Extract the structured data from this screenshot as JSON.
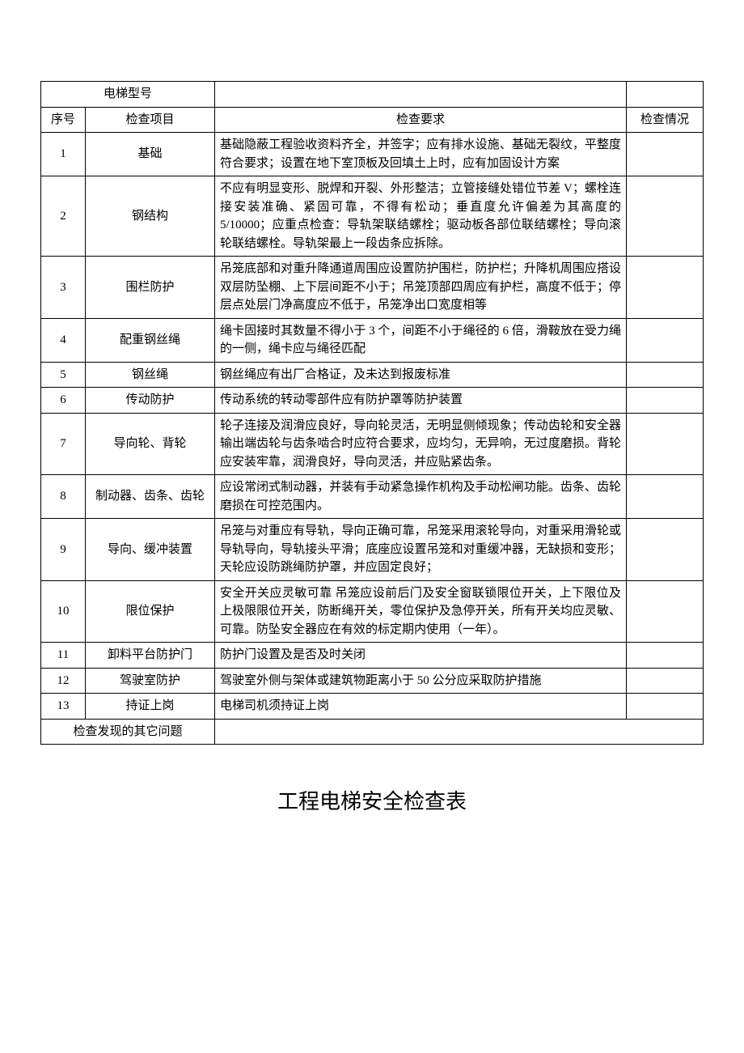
{
  "model_row": {
    "label": "电梯型号",
    "value": ""
  },
  "headers": {
    "seq": "序号",
    "item": "检查项目",
    "req": "检查要求",
    "status": "检查情况"
  },
  "rows": [
    {
      "seq": "1",
      "item": "基础",
      "req": "基础隐蔽工程验收资料齐全，并签字；应有排水设施、基础无裂纹，平整度符合要求；设置在地下室顶板及回填土上时，应有加固设计方案",
      "status": ""
    },
    {
      "seq": "2",
      "item": "钢结构",
      "req": "不应有明显变形、脱焊和开裂、外形整洁；立管接缝处错位节差 V；螺栓连接安装准确、紧固可靠，不得有松动；垂直度允许偏差为其高度的 5/10000；应重点检查：导轨架联结螺栓；驱动板各部位联结螺栓；导向滚轮联结螺栓。导轨架最上一段齿条应拆除。",
      "status": ""
    },
    {
      "seq": "3",
      "item": "围栏防护",
      "req": "吊笼底部和对重升降通道周围应设置防护围栏，防护栏；升降机周围应搭设双层防坠棚、上下层间距不小于；吊笼顶部四周应有护栏，高度不低于；停层点处层门净高度应不低于，吊笼净出口宽度相等",
      "status": ""
    },
    {
      "seq": "4",
      "item": "配重钢丝绳",
      "req": "绳卡固接时其数量不得小于 3 个，间距不小于绳径的 6 倍，滑鞍放在受力绳的一侧，绳卡应与绳径匹配",
      "status": ""
    },
    {
      "seq": "5",
      "item": "钢丝绳",
      "req": "钢丝绳应有出厂合格证，及未达到报废标准",
      "status": ""
    },
    {
      "seq": "6",
      "item": "传动防护",
      "req": "传动系统的转动零部件应有防护罩等防护装置",
      "status": ""
    },
    {
      "seq": "7",
      "item": "导向轮、背轮",
      "req": "轮子连接及润滑应良好，导向轮灵活，无明显侧倾现象；传动齿轮和安全器输出端齿轮与齿条啮合时应符合要求，应均匀，无异响，无过度磨损。背轮应安装牢靠，润滑良好，导向灵活，并应贴紧齿条。",
      "status": ""
    },
    {
      "seq": "8",
      "item": "制动器、齿条、齿轮",
      "req": "应设常闭式制动器，并装有手动紧急操作机构及手动松闸功能。齿条、齿轮磨损在可控范围内。",
      "status": ""
    },
    {
      "seq": "9",
      "item": "导向、缓冲装置",
      "req": "吊笼与对重应有导轨，导向正确可靠，吊笼采用滚轮导向，对重采用滑轮或导轨导向，导轨接头平滑；底座应设置吊笼和对重缓冲器，无缺损和变形；天轮应设防跳绳防护罩，并应固定良好；",
      "status": ""
    },
    {
      "seq": "10",
      "item": "限位保护",
      "req": "安全开关应灵敏可靠 吊笼应设前后门及安全窗联锁限位开关，上下限位及上极限限位开关，防断绳开关，零位保护及急停开关，所有开关均应灵敏、可靠。防坠安全器应在有效的标定期内使用（一年）。",
      "status": ""
    },
    {
      "seq": "11",
      "item": "卸料平台防护门",
      "req": "防护门设置及是否及时关闭",
      "status": ""
    },
    {
      "seq": "12",
      "item": "驾驶室防护",
      "req": "驾驶室外侧与架体或建筑物距离小于 50 公分应采取防护措施",
      "status": ""
    },
    {
      "seq": "13",
      "item": "持证上岗",
      "req": "电梯司机须持证上岗",
      "status": ""
    }
  ],
  "other_issues": {
    "label": "检查发现的其它问题",
    "value": ""
  },
  "footer_title": "工程电梯安全检查表"
}
